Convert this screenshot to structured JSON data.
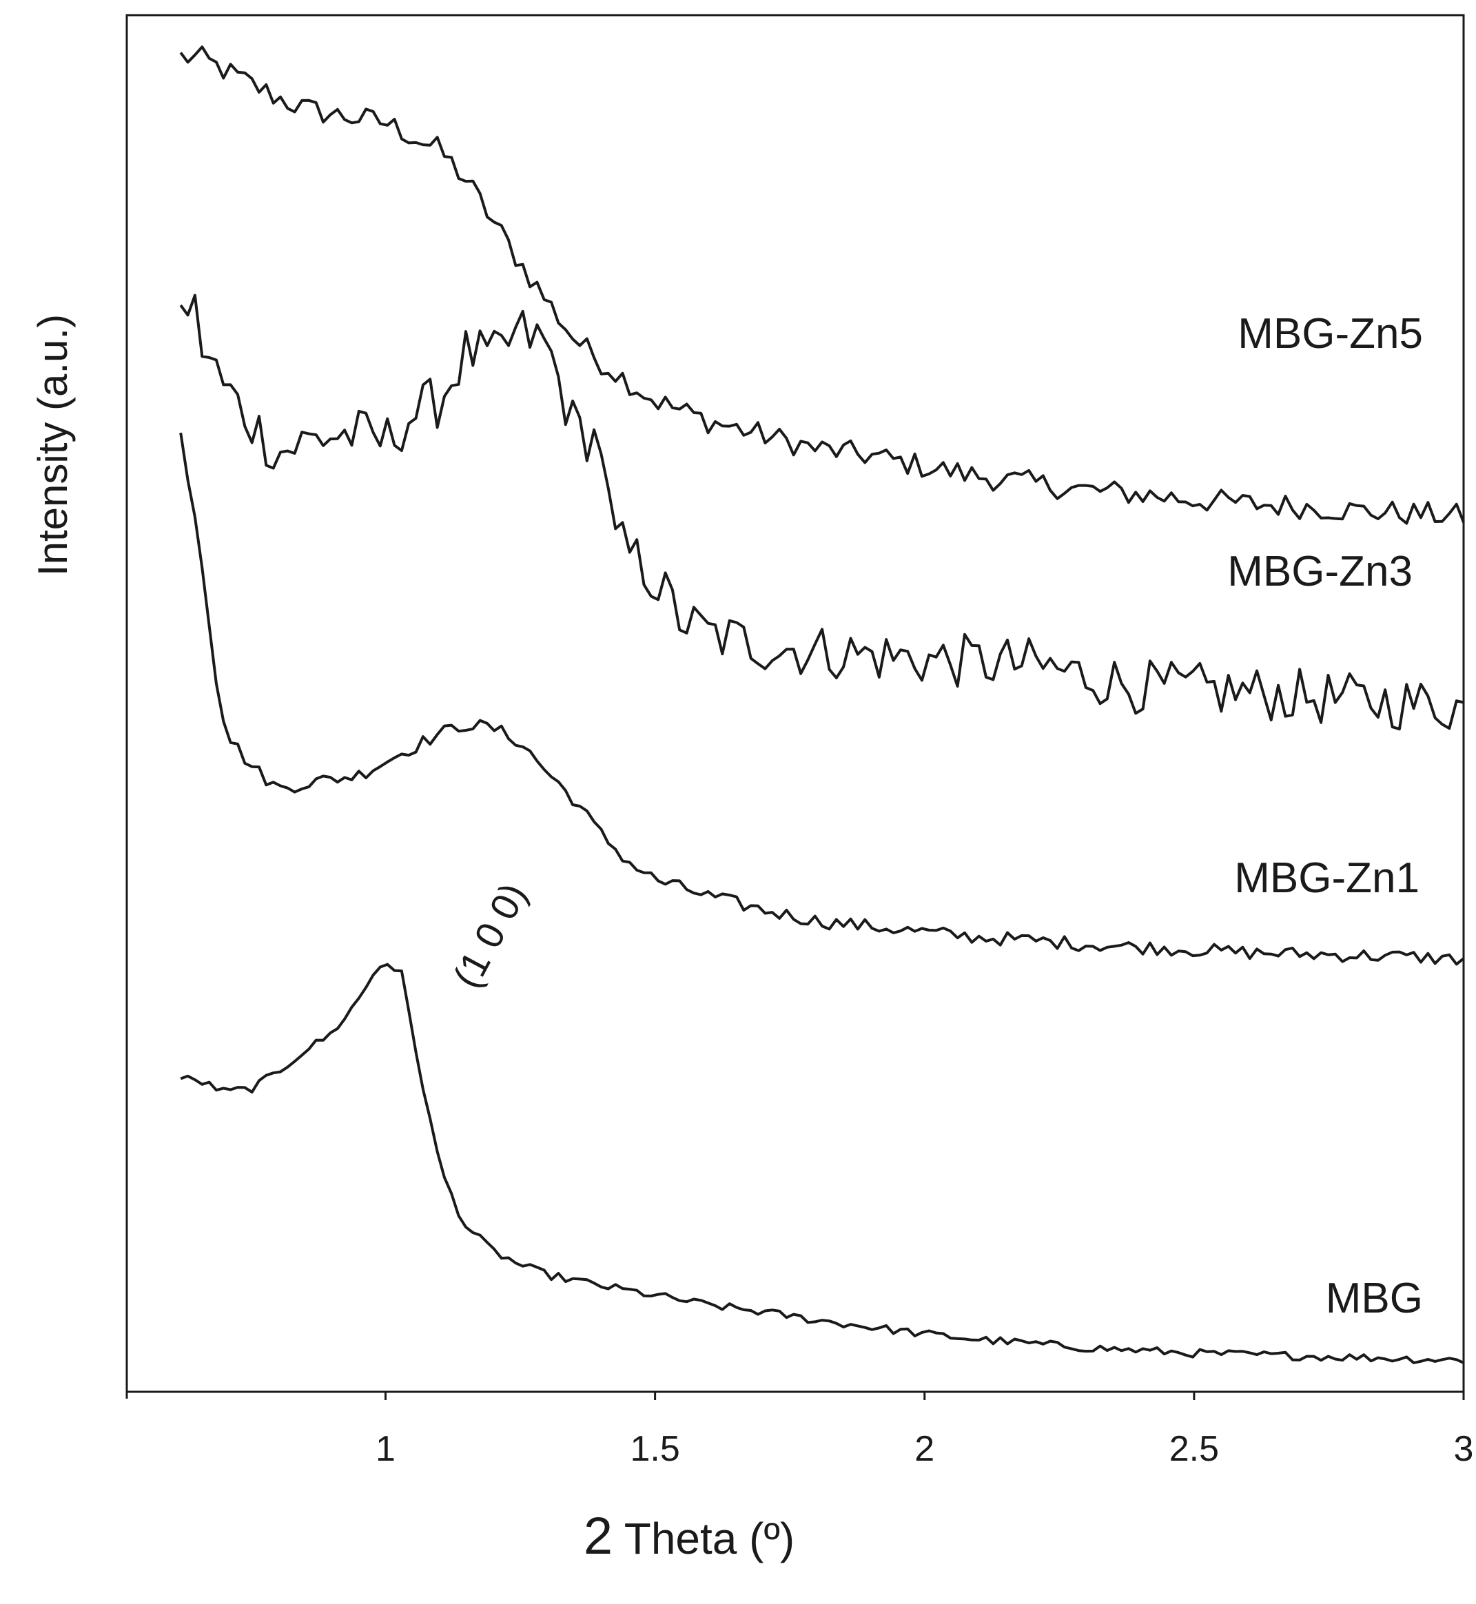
{
  "chart_data": {
    "type": "line",
    "title": "",
    "xlabel": "2 Theta (º)",
    "xlabel_parts": {
      "big": "2",
      "rest": " Theta (º)"
    },
    "ylabel": "Intensity (a.u.)",
    "xlim": [
      0.52,
      3.0
    ],
    "ylim": [
      0,
      10
    ],
    "x_ticks": [
      {
        "value": 1.0,
        "label": "1"
      },
      {
        "value": 1.5,
        "label": "1.5"
      },
      {
        "value": 2.0,
        "label": "2"
      },
      {
        "value": 2.5,
        "label": "2.5"
      },
      {
        "value": 3.0,
        "label": "3"
      }
    ],
    "grid": false,
    "legend": "labels placed beside each trace on the right",
    "annotation": {
      "text": "(1 0 0)",
      "x": 1.16,
      "y": 4.1
    },
    "series": [
      {
        "name": "MBG-Zn5",
        "x": [
          0.62,
          0.66,
          0.7,
          0.75,
          0.8,
          0.85,
          0.9,
          0.95,
          1.0,
          1.05,
          1.1,
          1.15,
          1.2,
          1.25,
          1.3,
          1.35,
          1.4,
          1.5,
          1.6,
          1.7,
          1.8,
          1.9,
          2.0,
          2.1,
          2.2,
          2.3,
          2.4,
          2.5,
          2.6,
          2.7,
          2.8,
          2.9,
          3.0
        ],
        "values": [
          9.7,
          9.68,
          9.6,
          9.5,
          9.4,
          9.32,
          9.28,
          9.25,
          9.22,
          9.12,
          9.02,
          8.8,
          8.5,
          8.2,
          7.92,
          7.65,
          7.48,
          7.2,
          7.05,
          6.95,
          6.85,
          6.8,
          6.72,
          6.65,
          6.6,
          6.55,
          6.52,
          6.48,
          6.45,
          6.43,
          6.4,
          6.38,
          6.36
        ]
      },
      {
        "name": "MBG-Zn3",
        "x": [
          0.62,
          0.64,
          0.66,
          0.7,
          0.75,
          0.8,
          0.85,
          0.9,
          0.95,
          1.0,
          1.05,
          1.1,
          1.15,
          1.2,
          1.25,
          1.3,
          1.35,
          1.4,
          1.42,
          1.45,
          1.5,
          1.55,
          1.6,
          1.7,
          1.8,
          1.9,
          2.0,
          2.1,
          2.2,
          2.3,
          2.4,
          2.5,
          2.6,
          2.7,
          2.8,
          2.9,
          3.0
        ],
        "values": [
          7.8,
          7.95,
          7.6,
          7.3,
          7.05,
          6.82,
          6.9,
          6.95,
          6.95,
          6.9,
          7.1,
          7.2,
          7.55,
          7.5,
          7.7,
          7.6,
          7.0,
          6.9,
          6.2,
          6.1,
          5.9,
          5.6,
          5.5,
          5.42,
          5.38,
          5.35,
          5.32,
          5.3,
          5.28,
          5.2,
          5.12,
          5.1,
          5.08,
          5.05,
          5.02,
          5.0,
          4.98
        ]
      },
      {
        "name": "MBG-Zn1",
        "x": [
          0.62,
          0.65,
          0.67,
          0.69,
          0.71,
          0.75,
          0.8,
          0.85,
          0.9,
          0.95,
          1.0,
          1.05,
          1.1,
          1.15,
          1.2,
          1.25,
          1.3,
          1.35,
          1.4,
          1.45,
          1.5,
          1.6,
          1.7,
          1.8,
          1.9,
          2.0,
          2.1,
          2.2,
          2.3,
          2.4,
          2.5,
          2.6,
          2.7,
          2.8,
          2.9,
          3.0
        ],
        "values": [
          6.95,
          6.3,
          5.7,
          5.05,
          4.75,
          4.55,
          4.38,
          4.42,
          4.45,
          4.48,
          4.58,
          4.68,
          4.78,
          4.85,
          4.82,
          4.72,
          4.5,
          4.3,
          4.05,
          3.85,
          3.72,
          3.6,
          3.5,
          3.42,
          3.38,
          3.34,
          3.3,
          3.28,
          3.25,
          3.23,
          3.21,
          3.19,
          3.18,
          3.17,
          3.16,
          3.14
        ]
      },
      {
        "name": "MBG",
        "x": [
          0.62,
          0.66,
          0.7,
          0.75,
          0.8,
          0.85,
          0.9,
          0.95,
          0.98,
          1.0,
          1.03,
          1.06,
          1.1,
          1.13,
          1.15,
          1.2,
          1.25,
          1.3,
          1.4,
          1.5,
          1.6,
          1.7,
          1.8,
          1.9,
          2.0,
          2.1,
          2.2,
          2.3,
          2.4,
          2.5,
          2.6,
          2.7,
          2.8,
          2.9,
          3.0
        ],
        "values": [
          2.28,
          2.25,
          2.18,
          2.2,
          2.32,
          2.48,
          2.6,
          2.85,
          3.05,
          3.13,
          3.03,
          2.4,
          1.65,
          1.35,
          1.2,
          1.02,
          0.92,
          0.85,
          0.77,
          0.7,
          0.63,
          0.58,
          0.52,
          0.47,
          0.42,
          0.38,
          0.35,
          0.32,
          0.3,
          0.28,
          0.27,
          0.26,
          0.25,
          0.24,
          0.23
        ]
      }
    ]
  }
}
